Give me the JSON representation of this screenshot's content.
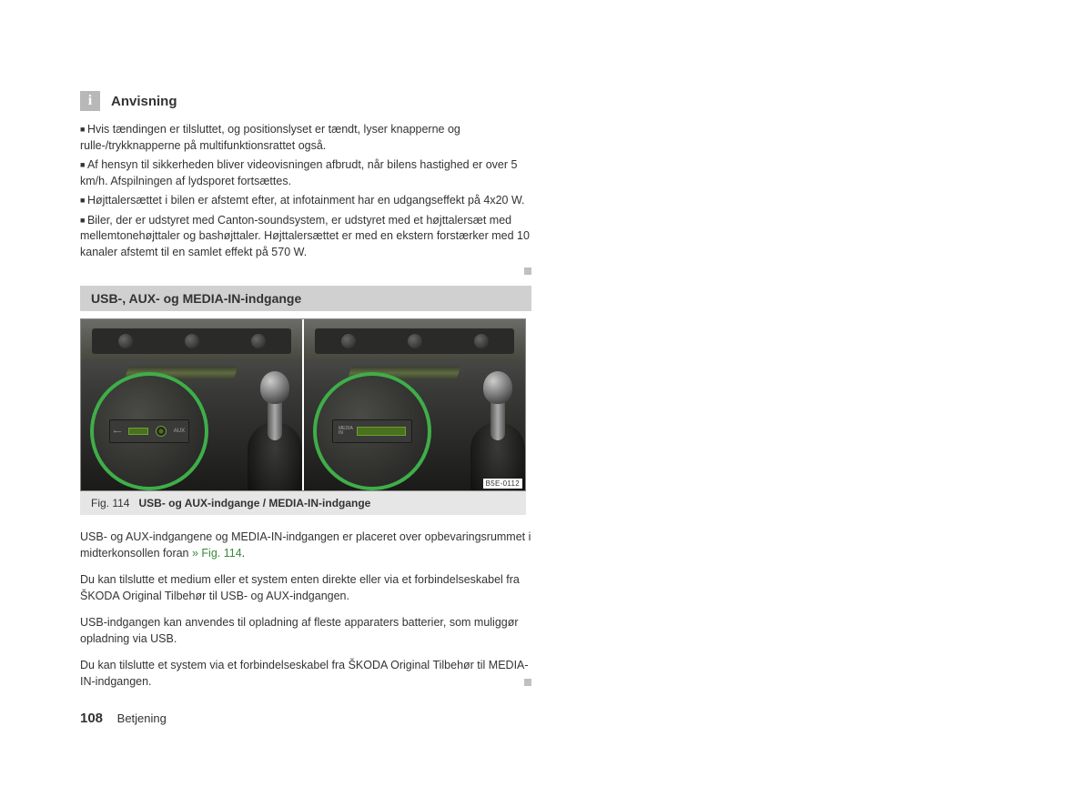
{
  "info": {
    "icon_letter": "i",
    "title": "Anvisning",
    "bullets": [
      "Hvis tændingen er tilsluttet, og positionslyset er tændt, lyser knapperne og rulle-/trykknapperne på multifunktionsrattet også.",
      "Af hensyn til sikkerheden bliver videovisningen afbrudt, når bilens hastighed er over 5 km/h. Afspilningen af lydsporet fortsættes.",
      "Højttalersættet i bilen er afstemt efter, at infotainment har en udgangseffekt på 4x20 W.",
      "Biler, der er udstyret med Canton-soundsystem, er udstyret med et højttalersæt med mellemtonehøjttaler og bashøjttaler. Højttalersættet er med en ekstern forstærker med 10 kanaler afstemt til en samlet effekt på 570 W."
    ]
  },
  "section_heading": "USB-, AUX- og MEDIA-IN-indgange",
  "figure": {
    "code": "B5E-0112",
    "left_ports": {
      "usb_label": "⟵",
      "aux_label": "AUX"
    },
    "right_port_label": "MEDIA\nIN",
    "caption_num": "Fig. 114",
    "caption_title": "USB- og AUX-indgange / MEDIA-IN-indgange"
  },
  "paragraphs": {
    "p1_a": "USB- og AUX-indgangene og MEDIA-IN-indgangen er placeret over opbevaringsrummet i midterkonsollen foran ",
    "p1_ref": "» Fig. 114",
    "p1_b": ".",
    "p2": "Du kan tilslutte et medium eller et system enten direkte eller via et forbindelseskabel fra ŠKODA Original Tilbehør til USB- og AUX-indgangen.",
    "p3": "USB-indgangen kan anvendes til opladning af fleste apparaters batterier, som muliggør opladning via USB.",
    "p4": "Du kan tilslutte et system via et forbindelseskabel fra ŠKODA Original Tilbehør til MEDIA-IN-indgangen."
  },
  "footer": {
    "page_number": "108",
    "section": "Betjening"
  },
  "colors": {
    "accent_green": "#3fae49",
    "heading_bg": "#d0d0d0",
    "caption_bg": "#e6e6e6",
    "info_icon_bg": "#b8b8b8"
  }
}
